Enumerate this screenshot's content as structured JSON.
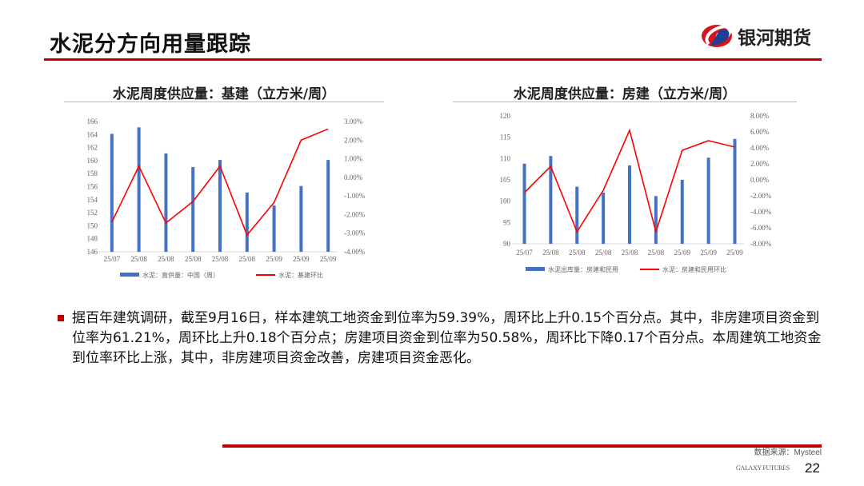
{
  "header": {
    "title": "水泥分方向用量跟踪",
    "logo_text": "银河期货"
  },
  "colors": {
    "accent": "#c00000",
    "bar": "#4472c4",
    "line": "#ff0000"
  },
  "chart_data": [
    {
      "type": "bar+line",
      "title": "水泥周度供应量：基建（立方米/周）",
      "categories": [
        "25/07",
        "25/08",
        "25/08",
        "25/08",
        "25/08",
        "25/08",
        "25/09",
        "25/09",
        "25/09"
      ],
      "series": [
        {
          "name": "水泥：直供量：中国（周）",
          "type": "bar",
          "axis": "left",
          "values": [
            164.1,
            165.1,
            161.1,
            159.0,
            160.1,
            155.1,
            153.1,
            156.1,
            160.1
          ]
        },
        {
          "name": "水泥：基建环比",
          "type": "line",
          "axis": "right",
          "values": [
            -2.4,
            0.6,
            -2.45,
            -1.3,
            0.6,
            -3.1,
            -1.35,
            2.0,
            2.6
          ]
        }
      ],
      "ylim_left": [
        146,
        166
      ],
      "yticks_left": [
        "146",
        "148",
        "150",
        "152",
        "154",
        "156",
        "158",
        "160",
        "162",
        "164",
        "166"
      ],
      "ylim_right": [
        -4,
        3
      ],
      "yticks_right": [
        "-4.00%",
        "-3.00%",
        "-2.00%",
        "-1.00%",
        "0.00%",
        "1.00%",
        "2.00%",
        "3.00%"
      ],
      "legend": "bottom"
    },
    {
      "type": "bar+line",
      "title": "水泥周度供应量：房建（立方米/周）",
      "categories": [
        "25/07",
        "25/08",
        "25/08",
        "25/08",
        "25/08",
        "25/08",
        "25/09",
        "25/09",
        "25/09"
      ],
      "series": [
        {
          "name": "水泥出库量：房建和民用",
          "type": "bar",
          "axis": "left",
          "values": [
            108.8,
            110.6,
            103.4,
            102.0,
            108.4,
            101.2,
            105.0,
            110.2,
            114.6
          ]
        },
        {
          "name": "水泥：房建和民用环比",
          "type": "line",
          "axis": "right",
          "values": [
            -1.6,
            1.7,
            -6.5,
            -1.3,
            6.2,
            -6.5,
            3.7,
            4.9,
            4.1
          ]
        }
      ],
      "ylim_left": [
        90,
        120
      ],
      "yticks_left": [
        "90",
        "95",
        "100",
        "105",
        "110",
        "115",
        "120"
      ],
      "ylim_right": [
        -8,
        8
      ],
      "yticks_right": [
        "-8.00%",
        "-6.00%",
        "-4.00%",
        "-2.00%",
        "0.00%",
        "2.00%",
        "4.00%",
        "6.00%",
        "8.00%"
      ],
      "legend": "bottom"
    }
  ],
  "body": {
    "paragraph": "据百年建筑调研，截至9月16日，样本建筑工地资金到位率为59.39%，周环比上升0.15个百分点。其中，非房建项目资金到位率为61.21%，周环比上升0.18个百分点；房建项目资金到位率为50.58%，周环比下降0.17个百分点。本周建筑工地资金到位率环比上涨，其中，非房建项目资金改善，房建项目资金恶化。"
  },
  "footer": {
    "source": "数据来源：Mysteel",
    "brand": "GALAXY FUTURES",
    "page": "22"
  }
}
